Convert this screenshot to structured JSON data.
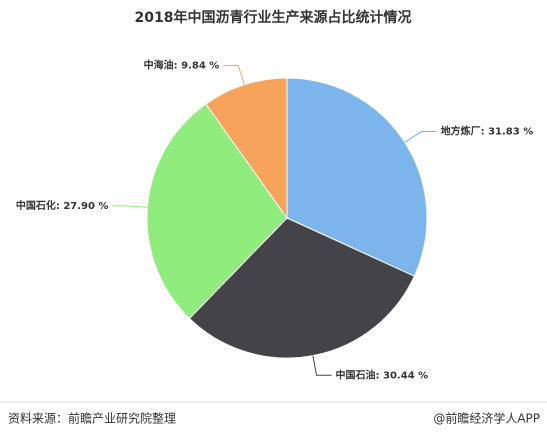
{
  "chart_data": {
    "type": "pie",
    "title": "2018年中国沥青行业生产来源占比统计情况",
    "categories": [
      "地方炼厂",
      "中国石油",
      "中国石化",
      "中海油"
    ],
    "values": [
      31.83,
      30.44,
      27.9,
      9.84
    ],
    "value_labels": [
      "31.83 %",
      "30.44 %",
      "27.90 %",
      "9.84 %"
    ],
    "colors": [
      "#7cb5ec",
      "#434348",
      "#90ed7d",
      "#f7a35c"
    ],
    "source": "资料来源：前瞻产业研究院整理",
    "credit": "@前瞻经济学人APP"
  }
}
